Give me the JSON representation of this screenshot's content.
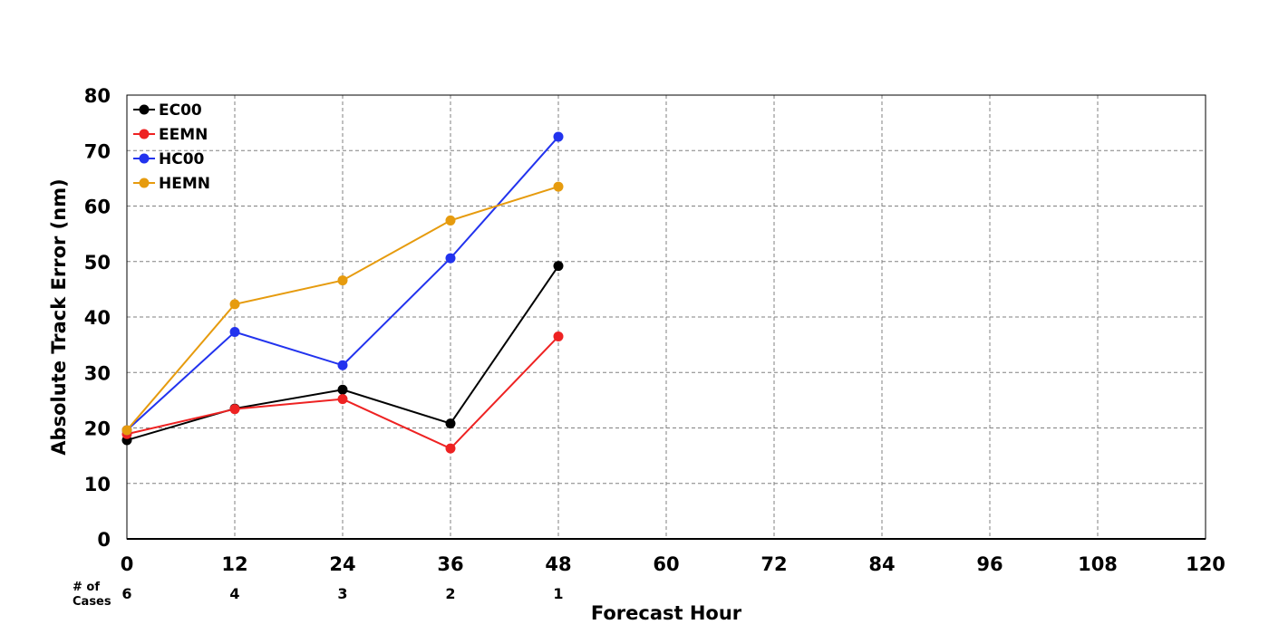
{
  "chart_data": {
    "type": "line",
    "xlabel": "Forecast Hour",
    "ylabel": "Absolute Track Error (nm)",
    "x": [
      0,
      12,
      24,
      36,
      48
    ],
    "xlim": [
      0,
      120
    ],
    "xticks": [
      "0",
      "12",
      "24",
      "36",
      "48",
      "60",
      "72",
      "84",
      "96",
      "108",
      "120"
    ],
    "ylim": [
      0,
      80
    ],
    "yticks": [
      "0",
      "10",
      "20",
      "30",
      "40",
      "50",
      "60",
      "70",
      "80"
    ],
    "grid": true,
    "legend_position": "top-left",
    "series": [
      {
        "name": "EC00",
        "color": "#000000",
        "values": [
          17.8,
          23.5,
          26.9,
          20.8,
          49.2
        ]
      },
      {
        "name": "EEMN",
        "color": "#ee2222",
        "values": [
          18.9,
          23.4,
          25.2,
          16.3,
          36.5
        ]
      },
      {
        "name": "HC00",
        "color": "#2233ee",
        "values": [
          19.6,
          37.3,
          31.3,
          50.6,
          72.5
        ]
      },
      {
        "name": "HEMN",
        "color": "#e69b0e",
        "values": [
          19.6,
          42.3,
          46.6,
          57.4,
          63.5
        ]
      }
    ],
    "cases": {
      "label_line1": "# of",
      "label_line2": "Cases",
      "counts": [
        "6",
        "4",
        "3",
        "2",
        "1"
      ]
    }
  }
}
